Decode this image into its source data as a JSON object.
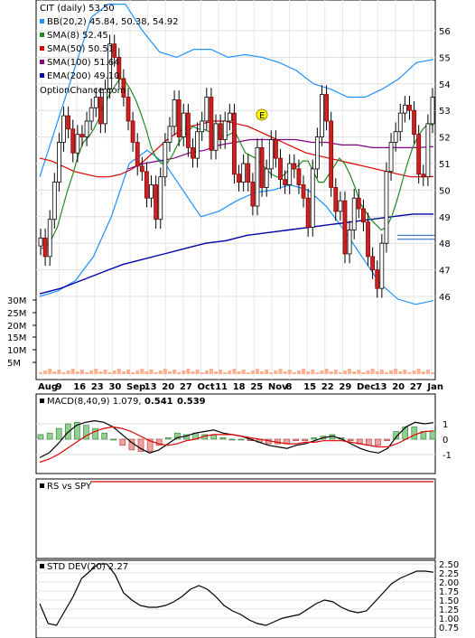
{
  "chart_data": [
    {
      "type": "candlestick",
      "title": "CIT (daily) 53.50",
      "watermark": "OptionChance.com",
      "ylim": [
        45.5,
        56.5
      ],
      "y_ticks": [
        46,
        47,
        48,
        49,
        50,
        51,
        52,
        53,
        54,
        55,
        56
      ],
      "x_ticks": [
        "Aug",
        "9",
        "16",
        "23",
        "30",
        "Sep",
        "13",
        "20",
        "27",
        "Oct",
        "11",
        "18",
        "25",
        "Nov",
        "8",
        "15",
        "22",
        "29",
        "Dec",
        "13",
        "20",
        "27",
        "Jan"
      ],
      "grid": true,
      "legend": [
        {
          "label": "BB(20,2) 45.84, 50.38, 54.92",
          "color": "#1e90ff"
        },
        {
          "label": "SMA(8) 52.45",
          "color": "#228b22"
        },
        {
          "label": "SMA(50) 50.51",
          "color": "#dd0000"
        },
        {
          "label": "SMA(100) 51.64",
          "color": "#800080"
        },
        {
          "label": "EMA(200) 49.10",
          "color": "#0000aa"
        }
      ],
      "highlight_levels": [
        48.3,
        48.15
      ],
      "event_marker": {
        "label": "E",
        "x_tick": "25",
        "y": 52.75
      },
      "volume_ticks": [
        "30M",
        "25M",
        "20M",
        "15M",
        "10M",
        "5M"
      ],
      "series": [
        {
          "name": "Close",
          "values": [
            48.2,
            47.5,
            48.9,
            50.3,
            51.8,
            52.8,
            52.3,
            51.4,
            52.1,
            52.0,
            52.6,
            53.1,
            53.5,
            52.5,
            53.8,
            55.5,
            55.0,
            54.2,
            53.5,
            52.6,
            51.8,
            50.9,
            50.7,
            49.7,
            50.2,
            48.9,
            50.5,
            51.8,
            52.4,
            53.4,
            52.0,
            52.9,
            51.6,
            51.2,
            52.2,
            52.6,
            53.5,
            51.5,
            52.5,
            51.9,
            52.6,
            52.9,
            50.6,
            50.3,
            51.0,
            50.3,
            49.4,
            51.6,
            50.1,
            50.8,
            51.9,
            51.2,
            50.4,
            50.2,
            51.0,
            50.8,
            50.2,
            49.7,
            48.6,
            50.8,
            52.0,
            53.6,
            52.6,
            50.1,
            49.2,
            49.6,
            47.6,
            48.5,
            49.7,
            49.3,
            48.8,
            47.5,
            47.0,
            46.3,
            48.0,
            50.7,
            51.8,
            52.2,
            52.9,
            53.2,
            53.0,
            52.1,
            50.6,
            50.5,
            52.5,
            53.5
          ]
        },
        {
          "name": "SMA(8)",
          "values": [
            47.8,
            47.9,
            48.2,
            48.6,
            49.3,
            50.0,
            50.6,
            51.3,
            51.8,
            52.0,
            52.3,
            52.7,
            53.2,
            53.6,
            53.9,
            54.2,
            54.1,
            53.8,
            53.4,
            52.9,
            52.3,
            51.6,
            51.2,
            51.0,
            51.0,
            51.3,
            51.7,
            52.0,
            52.2,
            52.4,
            52.3,
            52.3,
            52.2,
            52.2,
            52.1,
            52.0,
            52.1,
            52.2,
            51.8,
            51.4,
            51.3,
            51.2,
            51.0,
            50.8,
            50.6,
            50.5,
            50.5,
            50.7,
            50.8,
            50.9,
            51.1,
            51.1,
            50.7,
            50.3,
            50.3,
            50.6,
            50.9,
            51.2,
            51.0,
            50.6,
            50.1,
            49.5,
            49.2,
            48.9,
            48.7,
            48.5,
            48.6,
            49.0,
            49.6,
            50.3,
            51.0,
            51.6,
            52.0,
            52.3,
            52.5,
            52.45
          ]
        },
        {
          "name": "SMA(50)",
          "values": [
            51.2,
            51.1,
            50.9,
            50.7,
            50.6,
            50.5,
            50.5,
            50.6,
            50.8,
            51.1,
            51.5,
            51.9,
            52.2,
            52.4,
            52.5,
            52.6,
            52.6,
            52.5,
            52.4,
            52.2,
            52.0,
            51.8,
            51.6,
            51.4,
            51.3,
            51.2,
            51.1,
            51.0,
            50.9,
            50.8,
            50.7,
            50.6,
            50.5,
            50.5,
            50.51
          ]
        },
        {
          "name": "SMA(100)",
          "values": [
            50.8,
            51.0,
            51.1,
            51.2,
            51.4,
            51.5,
            51.7,
            51.8,
            51.9,
            51.9,
            51.9,
            51.9,
            51.8,
            51.8,
            51.7,
            51.7,
            51.6,
            51.6,
            51.6,
            51.6,
            51.64
          ]
        },
        {
          "name": "EMA(200)",
          "values": [
            46.1,
            46.3,
            46.6,
            46.9,
            47.2,
            47.4,
            47.6,
            47.8,
            48.0,
            48.1,
            48.3,
            48.4,
            48.5,
            48.6,
            48.7,
            48.8,
            48.9,
            49.0,
            49.1,
            49.1
          ]
        },
        {
          "name": "BB Upper",
          "values": [
            50.5,
            52.5,
            54.5,
            56.5,
            57.0,
            57.0,
            56.0,
            55.2,
            55.0,
            55.3,
            55.3,
            55.0,
            55.1,
            55.0,
            54.8,
            54.5,
            54.0,
            53.8,
            53.5,
            53.5,
            53.8,
            54.2,
            54.8,
            54.92
          ]
        },
        {
          "name": "BB Lower",
          "values": [
            46.0,
            46.2,
            46.6,
            47.5,
            49.0,
            51.0,
            51.5,
            51.0,
            50.0,
            49.0,
            49.2,
            49.6,
            49.9,
            50.0,
            50.2,
            50.0,
            49.4,
            48.5,
            47.5,
            46.5,
            45.9,
            45.7,
            45.84
          ]
        }
      ]
    },
    {
      "type": "line",
      "title": "MACD(8,40,9) 1.079,",
      "values_text": [
        "0.541",
        "0.539"
      ],
      "y_ticks": [
        "1",
        "0",
        "-1"
      ],
      "ylim": [
        -1.6,
        1.6
      ],
      "series": [
        {
          "name": "MACD",
          "values": [
            -1.2,
            -0.9,
            -0.3,
            0.4,
            0.9,
            1.1,
            1.2,
            1.1,
            0.8,
            0.3,
            -0.2,
            -0.6,
            -0.9,
            -0.7,
            -0.3,
            0.1,
            0.2,
            0.4,
            0.5,
            0.6,
            0.4,
            0.3,
            0.2,
            0.0,
            -0.2,
            -0.4,
            -0.5,
            -0.6,
            -0.4,
            -0.3,
            -0.1,
            0.1,
            0.2,
            0.0,
            -0.3,
            -0.6,
            -0.8,
            -0.9,
            -0.6,
            0.2,
            0.8,
            1.1,
            1.0,
            1.079
          ]
        },
        {
          "name": "Signal",
          "values": [
            -1.5,
            -1.3,
            -1.0,
            -0.6,
            -0.2,
            0.2,
            0.5,
            0.7,
            0.8,
            0.7,
            0.5,
            0.2,
            -0.1,
            -0.3,
            -0.4,
            -0.3,
            -0.1,
            0.0,
            0.2,
            0.3,
            0.3,
            0.3,
            0.2,
            0.1,
            0.0,
            -0.1,
            -0.2,
            -0.3,
            -0.3,
            -0.2,
            -0.2,
            -0.1,
            -0.1,
            -0.1,
            -0.2,
            -0.3,
            -0.4,
            -0.5,
            -0.5,
            -0.3,
            0.0,
            0.3,
            0.5,
            0.541
          ]
        }
      ]
    },
    {
      "type": "line",
      "title": "RS vs SPY",
      "series": [
        {
          "name": "RS vs SPY",
          "values": [
            1,
            1
          ]
        }
      ]
    },
    {
      "type": "line",
      "title": "STD DEV(20) 2.27",
      "y_ticks": [
        "2.50",
        "2.25",
        "2.00",
        "1.75",
        "1.50",
        "1.25",
        "1.00",
        "0.75"
      ],
      "ylim": [
        0.7,
        2.55
      ],
      "series": [
        {
          "name": "STD DEV(20)",
          "values": [
            1.4,
            0.85,
            0.8,
            1.2,
            1.6,
            2.1,
            2.3,
            2.5,
            2.5,
            2.2,
            1.7,
            1.5,
            1.35,
            1.3,
            1.3,
            1.35,
            1.45,
            1.6,
            1.8,
            1.9,
            1.8,
            1.6,
            1.35,
            1.2,
            1.1,
            0.95,
            0.85,
            0.8,
            0.9,
            1.0,
            1.05,
            1.1,
            1.25,
            1.4,
            1.5,
            1.45,
            1.3,
            1.2,
            1.15,
            1.2,
            1.45,
            1.7,
            1.95,
            2.1,
            2.2,
            2.3,
            2.3,
            2.27
          ]
        }
      ]
    }
  ]
}
